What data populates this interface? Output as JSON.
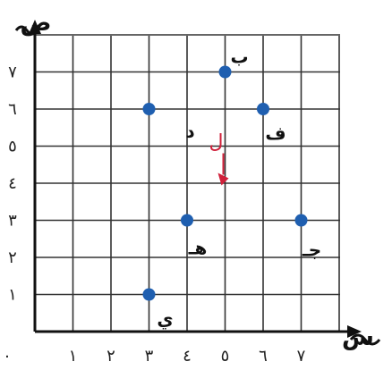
{
  "chart_data": {
    "type": "scatter",
    "xlabel": "س",
    "ylabel": "ص",
    "xlim": [
      0,
      8
    ],
    "ylim": [
      0,
      8
    ],
    "grid": true,
    "x_ticks": [
      {
        "value": 0,
        "label": "٠"
      },
      {
        "value": 1,
        "label": "١"
      },
      {
        "value": 2,
        "label": "٢"
      },
      {
        "value": 3,
        "label": "٣"
      },
      {
        "value": 4,
        "label": "٤"
      },
      {
        "value": 5,
        "label": "٥"
      },
      {
        "value": 6,
        "label": "٦"
      },
      {
        "value": 7,
        "label": "٧"
      }
    ],
    "y_ticks": [
      {
        "value": 1,
        "label": "١"
      },
      {
        "value": 2,
        "label": "٢"
      },
      {
        "value": 3,
        "label": "٣"
      },
      {
        "value": 4,
        "label": "٤"
      },
      {
        "value": 5,
        "label": "٥"
      },
      {
        "value": 6,
        "label": "٦"
      },
      {
        "value": 7,
        "label": "٧"
      }
    ],
    "points": [
      {
        "label": "ب",
        "x": 5,
        "y": 7
      },
      {
        "label": "د",
        "x": 3,
        "y": 6
      },
      {
        "label": "ف",
        "x": 6,
        "y": 6
      },
      {
        "label": "هـ",
        "x": 4,
        "y": 3
      },
      {
        "label": "جـ",
        "x": 7,
        "y": 3
      },
      {
        "label": "ي",
        "x": 3,
        "y": 1
      }
    ],
    "annotation": {
      "text": "ل",
      "x": 5,
      "y": 5
    },
    "colors": {
      "point": "#1f5fb0",
      "grid": "#333333",
      "axis": "#111111",
      "annotation": "#d0203a"
    }
  }
}
